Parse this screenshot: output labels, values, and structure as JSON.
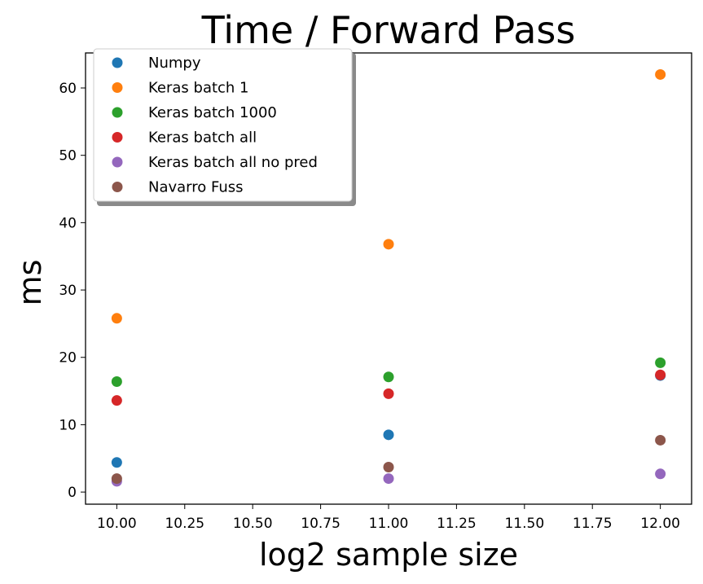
{
  "chart_data": {
    "type": "scatter",
    "title": "Time / Forward Pass",
    "xlabel": "log2 sample size",
    "ylabel": "ms",
    "xlim": [
      9.885,
      12.115
    ],
    "ylim": [
      -1.8,
      65.2
    ],
    "xticks": [
      10.0,
      10.25,
      10.5,
      10.75,
      11.0,
      11.25,
      11.5,
      11.75,
      12.0
    ],
    "xtick_labels": [
      "10.00",
      "10.25",
      "10.50",
      "10.75",
      "11.00",
      "11.25",
      "11.50",
      "11.75",
      "12.00"
    ],
    "yticks": [
      0,
      10,
      20,
      30,
      40,
      50,
      60
    ],
    "ytick_labels": [
      "0",
      "10",
      "20",
      "30",
      "40",
      "50",
      "60"
    ],
    "grid": false,
    "legend_position": "upper-left",
    "series": [
      {
        "name": "Numpy",
        "color": "#1f77b4",
        "x": [
          10,
          11,
          12
        ],
        "y": [
          4.4,
          8.5,
          17.3
        ]
      },
      {
        "name": "Keras batch 1",
        "color": "#ff7f0e",
        "x": [
          10,
          11,
          12
        ],
        "y": [
          25.8,
          36.8,
          62.0
        ]
      },
      {
        "name": "Keras batch 1000",
        "color": "#2ca02c",
        "x": [
          10,
          11,
          12
        ],
        "y": [
          16.4,
          17.1,
          19.2
        ]
      },
      {
        "name": "Keras batch all",
        "color": "#d62728",
        "x": [
          10,
          11,
          12
        ],
        "y": [
          13.6,
          14.6,
          17.4
        ]
      },
      {
        "name": "Keras batch all no pred",
        "color": "#9467bd",
        "x": [
          10,
          11,
          12
        ],
        "y": [
          1.6,
          2.0,
          2.7
        ]
      },
      {
        "name": "Navarro Fuss",
        "color": "#8c564b",
        "x": [
          10,
          11,
          12
        ],
        "y": [
          2.0,
          3.7,
          7.7
        ]
      }
    ]
  }
}
